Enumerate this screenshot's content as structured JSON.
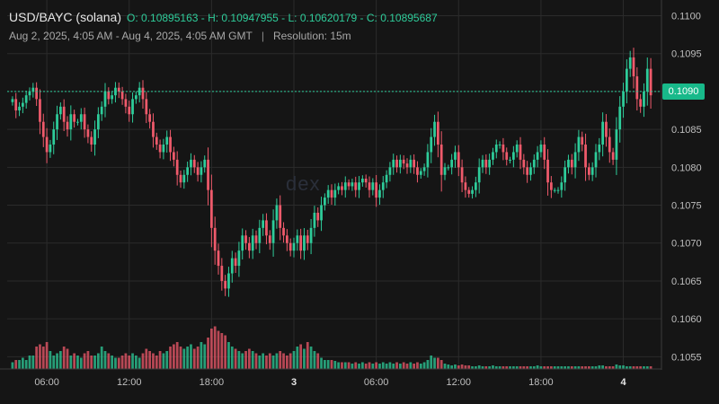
{
  "header": {
    "symbol": "USD/BAYC (solana)",
    "ohlc": "O: 0.10895163 - H: 0.10947955 - L: 0.10620179 - C: 0.10895687",
    "range": "Aug 2, 2025, 4:05 AM - Aug 4, 2025, 4:05 AM GMT",
    "separator": "|",
    "resolution": "Resolution: 15m"
  },
  "watermark": "dex",
  "current_price_label": "0.1090",
  "colors": {
    "background": "#151515",
    "grid": "#2b2b2b",
    "up": "#2ecc9a",
    "down": "#ef5a6b",
    "price_line": "#2ecc9a",
    "price_tag": "#18b98a"
  },
  "chart_data": {
    "type": "candlestick",
    "y_ticks": [
      "0.1100",
      "0.1095",
      "0.1090",
      "0.1085",
      "0.1080",
      "0.1075",
      "0.1070",
      "0.1065",
      "0.1060",
      "0.1055"
    ],
    "y_values": [
      0.11,
      0.1095,
      0.109,
      0.1085,
      0.108,
      0.1075,
      0.107,
      0.1065,
      0.106,
      0.1055
    ],
    "ylim": [
      0.10535,
      0.11003
    ],
    "x_ticks": [
      {
        "label": "06:00",
        "i": 10
      },
      {
        "label": "12:00",
        "i": 34
      },
      {
        "label": "18:00",
        "i": 58
      },
      {
        "label": "3",
        "i": 82
      },
      {
        "label": "06:00",
        "i": 106
      },
      {
        "label": "12:00",
        "i": 130
      },
      {
        "label": "18:00",
        "i": 154
      },
      {
        "label": "4",
        "i": 178
      }
    ],
    "current_price": 0.109,
    "candles": [
      {
        "c": 0.1089,
        "v": 0.15
      },
      {
        "c": 0.10875,
        "v": 0.2
      },
      {
        "c": 0.1088,
        "v": 0.2
      },
      {
        "c": 0.10885,
        "v": 0.25
      },
      {
        "c": 0.10895,
        "v": 0.2
      },
      {
        "c": 0.109,
        "v": 0.3
      },
      {
        "c": 0.10905,
        "v": 0.3
      },
      {
        "c": 0.1089,
        "v": 0.5
      },
      {
        "c": 0.1086,
        "v": 0.55
      },
      {
        "c": 0.1084,
        "v": 0.5
      },
      {
        "c": 0.1082,
        "v": 0.6
      },
      {
        "c": 0.1083,
        "v": 0.4
      },
      {
        "c": 0.1085,
        "v": 0.3
      },
      {
        "c": 0.1087,
        "v": 0.35
      },
      {
        "c": 0.1088,
        "v": 0.4
      },
      {
        "c": 0.1086,
        "v": 0.5
      },
      {
        "c": 0.1085,
        "v": 0.45
      },
      {
        "c": 0.1087,
        "v": 0.3
      },
      {
        "c": 0.1086,
        "v": 0.35
      },
      {
        "c": 0.1086,
        "v": 0.3
      },
      {
        "c": 0.1087,
        "v": 0.25
      },
      {
        "c": 0.1085,
        "v": 0.35
      },
      {
        "c": 0.1084,
        "v": 0.4
      },
      {
        "c": 0.1083,
        "v": 0.3
      },
      {
        "c": 0.1085,
        "v": 0.3
      },
      {
        "c": 0.1087,
        "v": 0.35
      },
      {
        "c": 0.1088,
        "v": 0.5
      },
      {
        "c": 0.109,
        "v": 0.4
      },
      {
        "c": 0.1089,
        "v": 0.35
      },
      {
        "c": 0.10895,
        "v": 0.3
      },
      {
        "c": 0.10905,
        "v": 0.25
      },
      {
        "c": 0.109,
        "v": 0.25
      },
      {
        "c": 0.1089,
        "v": 0.3
      },
      {
        "c": 0.1088,
        "v": 0.35
      },
      {
        "c": 0.1087,
        "v": 0.3
      },
      {
        "c": 0.1089,
        "v": 0.35
      },
      {
        "c": 0.10895,
        "v": 0.3
      },
      {
        "c": 0.10905,
        "v": 0.25
      },
      {
        "c": 0.1089,
        "v": 0.35
      },
      {
        "c": 0.1087,
        "v": 0.45
      },
      {
        "c": 0.1086,
        "v": 0.4
      },
      {
        "c": 0.1084,
        "v": 0.35
      },
      {
        "c": 0.1083,
        "v": 0.3
      },
      {
        "c": 0.1082,
        "v": 0.4
      },
      {
        "c": 0.1083,
        "v": 0.35
      },
      {
        "c": 0.1084,
        "v": 0.4
      },
      {
        "c": 0.1082,
        "v": 0.5
      },
      {
        "c": 0.1081,
        "v": 0.55
      },
      {
        "c": 0.1079,
        "v": 0.6
      },
      {
        "c": 0.1078,
        "v": 0.5
      },
      {
        "c": 0.1079,
        "v": 0.45
      },
      {
        "c": 0.108,
        "v": 0.5
      },
      {
        "c": 0.1081,
        "v": 0.55
      },
      {
        "c": 0.108,
        "v": 0.45
      },
      {
        "c": 0.1079,
        "v": 0.5
      },
      {
        "c": 0.108,
        "v": 0.6
      },
      {
        "c": 0.1081,
        "v": 0.55
      },
      {
        "c": 0.1077,
        "v": 0.7
      },
      {
        "c": 0.1072,
        "v": 0.9
      },
      {
        "c": 0.1069,
        "v": 0.95
      },
      {
        "c": 0.1067,
        "v": 0.85
      },
      {
        "c": 0.1065,
        "v": 0.8
      },
      {
        "c": 0.1064,
        "v": 0.75
      },
      {
        "c": 0.1066,
        "v": 0.6
      },
      {
        "c": 0.1068,
        "v": 0.5
      },
      {
        "c": 0.1067,
        "v": 0.45
      },
      {
        "c": 0.1069,
        "v": 0.4
      },
      {
        "c": 0.1071,
        "v": 0.35
      },
      {
        "c": 0.107,
        "v": 0.4
      },
      {
        "c": 0.1069,
        "v": 0.45
      },
      {
        "c": 0.1071,
        "v": 0.4
      },
      {
        "c": 0.107,
        "v": 0.35
      },
      {
        "c": 0.1072,
        "v": 0.3
      },
      {
        "c": 0.1073,
        "v": 0.35
      },
      {
        "c": 0.1071,
        "v": 0.3
      },
      {
        "c": 0.107,
        "v": 0.35
      },
      {
        "c": 0.1073,
        "v": 0.3
      },
      {
        "c": 0.1075,
        "v": 0.35
      },
      {
        "c": 0.1072,
        "v": 0.4
      },
      {
        "c": 0.1071,
        "v": 0.35
      },
      {
        "c": 0.107,
        "v": 0.3
      },
      {
        "c": 0.1069,
        "v": 0.35
      },
      {
        "c": 0.107,
        "v": 0.4
      },
      {
        "c": 0.1071,
        "v": 0.5
      },
      {
        "c": 0.1069,
        "v": 0.55
      },
      {
        "c": 0.1071,
        "v": 0.45
      },
      {
        "c": 0.107,
        "v": 0.6
      },
      {
        "c": 0.1072,
        "v": 0.5
      },
      {
        "c": 0.1074,
        "v": 0.4
      },
      {
        "c": 0.1073,
        "v": 0.35
      },
      {
        "c": 0.1075,
        "v": 0.25
      },
      {
        "c": 0.1076,
        "v": 0.2
      },
      {
        "c": 0.1077,
        "v": 0.2
      },
      {
        "c": 0.1076,
        "v": 0.2
      },
      {
        "c": 0.1077,
        "v": 0.18
      },
      {
        "c": 0.10775,
        "v": 0.15
      },
      {
        "c": 0.1077,
        "v": 0.15
      },
      {
        "c": 0.1078,
        "v": 0.15
      },
      {
        "c": 0.10775,
        "v": 0.15
      },
      {
        "c": 0.1078,
        "v": 0.12
      },
      {
        "c": 0.1077,
        "v": 0.15
      },
      {
        "c": 0.1078,
        "v": 0.12
      },
      {
        "c": 0.10785,
        "v": 0.15
      },
      {
        "c": 0.1078,
        "v": 0.12
      },
      {
        "c": 0.1077,
        "v": 0.15
      },
      {
        "c": 0.1078,
        "v": 0.12
      },
      {
        "c": 0.1076,
        "v": 0.15
      },
      {
        "c": 0.1077,
        "v": 0.12
      },
      {
        "c": 0.1078,
        "v": 0.15
      },
      {
        "c": 0.1079,
        "v": 0.12
      },
      {
        "c": 0.108,
        "v": 0.15
      },
      {
        "c": 0.1081,
        "v": 0.12
      },
      {
        "c": 0.108,
        "v": 0.15
      },
      {
        "c": 0.1081,
        "v": 0.12
      },
      {
        "c": 0.10805,
        "v": 0.15
      },
      {
        "c": 0.108,
        "v": 0.12
      },
      {
        "c": 0.1081,
        "v": 0.15
      },
      {
        "c": 0.108,
        "v": 0.12
      },
      {
        "c": 0.1079,
        "v": 0.15
      },
      {
        "c": 0.10795,
        "v": 0.12
      },
      {
        "c": 0.108,
        "v": 0.15
      },
      {
        "c": 0.1082,
        "v": 0.2
      },
      {
        "c": 0.1084,
        "v": 0.3
      },
      {
        "c": 0.1086,
        "v": 0.25
      },
      {
        "c": 0.1083,
        "v": 0.25
      },
      {
        "c": 0.1079,
        "v": 0.2
      },
      {
        "c": 0.108,
        "v": 0.12
      },
      {
        "c": 0.108,
        "v": 0.1
      },
      {
        "c": 0.1081,
        "v": 0.08
      },
      {
        "c": 0.1082,
        "v": 0.1
      },
      {
        "c": 0.108,
        "v": 0.08
      },
      {
        "c": 0.1078,
        "v": 0.1
      },
      {
        "c": 0.1077,
        "v": 0.08
      },
      {
        "c": 0.10765,
        "v": 0.08
      },
      {
        "c": 0.1077,
        "v": 0.06
      },
      {
        "c": 0.1078,
        "v": 0.06
      },
      {
        "c": 0.108,
        "v": 0.08
      },
      {
        "c": 0.1081,
        "v": 0.06
      },
      {
        "c": 0.108,
        "v": 0.06
      },
      {
        "c": 0.1081,
        "v": 0.06
      },
      {
        "c": 0.1082,
        "v": 0.08
      },
      {
        "c": 0.1083,
        "v": 0.06
      },
      {
        "c": 0.1083,
        "v": 0.06
      },
      {
        "c": 0.1082,
        "v": 0.06
      },
      {
        "c": 0.1081,
        "v": 0.06
      },
      {
        "c": 0.1081,
        "v": 0.06
      },
      {
        "c": 0.1082,
        "v": 0.06
      },
      {
        "c": 0.1083,
        "v": 0.06
      },
      {
        "c": 0.1081,
        "v": 0.06
      },
      {
        "c": 0.108,
        "v": 0.06
      },
      {
        "c": 0.1079,
        "v": 0.06
      },
      {
        "c": 0.108,
        "v": 0.06
      },
      {
        "c": 0.1081,
        "v": 0.06
      },
      {
        "c": 0.1082,
        "v": 0.08
      },
      {
        "c": 0.1083,
        "v": 0.06
      },
      {
        "c": 0.1081,
        "v": 0.06
      },
      {
        "c": 0.1078,
        "v": 0.06
      },
      {
        "c": 0.1077,
        "v": 0.06
      },
      {
        "c": 0.1077,
        "v": 0.06
      },
      {
        "c": 0.1077,
        "v": 0.06
      },
      {
        "c": 0.1078,
        "v": 0.06
      },
      {
        "c": 0.108,
        "v": 0.06
      },
      {
        "c": 0.1081,
        "v": 0.06
      },
      {
        "c": 0.108,
        "v": 0.06
      },
      {
        "c": 0.1082,
        "v": 0.06
      },
      {
        "c": 0.1084,
        "v": 0.06
      },
      {
        "c": 0.1083,
        "v": 0.06
      },
      {
        "c": 0.108,
        "v": 0.06
      },
      {
        "c": 0.1079,
        "v": 0.06
      },
      {
        "c": 0.108,
        "v": 0.06
      },
      {
        "c": 0.1082,
        "v": 0.06
      },
      {
        "c": 0.1083,
        "v": 0.08
      },
      {
        "c": 0.1086,
        "v": 0.08
      },
      {
        "c": 0.1084,
        "v": 0.06
      },
      {
        "c": 0.1082,
        "v": 0.06
      },
      {
        "c": 0.1081,
        "v": 0.06
      },
      {
        "c": 0.1085,
        "v": 0.1
      },
      {
        "c": 0.1088,
        "v": 0.08
      },
      {
        "c": 0.109,
        "v": 0.08
      },
      {
        "c": 0.1093,
        "v": 0.06
      },
      {
        "c": 0.10945,
        "v": 0.06
      },
      {
        "c": 0.1092,
        "v": 0.06
      },
      {
        "c": 0.1089,
        "v": 0.06
      },
      {
        "c": 0.1088,
        "v": 0.06
      },
      {
        "c": 0.109,
        "v": 0.06
      },
      {
        "c": 0.1093,
        "v": 0.06
      },
      {
        "c": 0.10895,
        "v": 0.06
      }
    ]
  }
}
